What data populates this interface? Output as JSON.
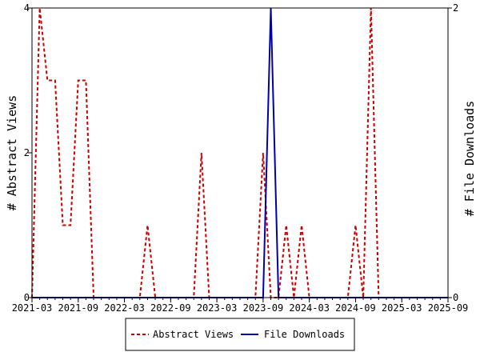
{
  "chart_data": {
    "type": "line",
    "title": "",
    "xlabel": "",
    "ylabel": "# Abstract Views",
    "y2label": "# File Downloads",
    "x_range": [
      "2021-03",
      "2025-09"
    ],
    "x_ticks": [
      "2021-03",
      "2021-09",
      "2022-03",
      "2022-09",
      "2023-03",
      "2023-09",
      "2024-03",
      "2024-09",
      "2025-03",
      "2025-09"
    ],
    "ylim": [
      0,
      4
    ],
    "y_ticks": [
      "0",
      "2",
      "4"
    ],
    "y2lim": [
      0,
      2
    ],
    "y2_ticks": [
      "0",
      "2"
    ],
    "legend_position": "bottom",
    "series": [
      {
        "name": "Abstract Views",
        "axis": "left",
        "color": "#cc0000",
        "dash": "dashed",
        "x": [
          "2021-03",
          "2021-04",
          "2021-05",
          "2021-06",
          "2021-07",
          "2021-08",
          "2021-09",
          "2021-10",
          "2021-11",
          "2021-12",
          "2022-01",
          "2022-02",
          "2022-03",
          "2022-04",
          "2022-05",
          "2022-06",
          "2022-07",
          "2022-08",
          "2022-09",
          "2022-10",
          "2022-11",
          "2022-12",
          "2023-01",
          "2023-02",
          "2023-03",
          "2023-04",
          "2023-05",
          "2023-06",
          "2023-07",
          "2023-08",
          "2023-09",
          "2023-10",
          "2023-11",
          "2023-12",
          "2024-01",
          "2024-02",
          "2024-03",
          "2024-04",
          "2024-05",
          "2024-06",
          "2024-07",
          "2024-08",
          "2024-09",
          "2024-10",
          "2024-11",
          "2024-12",
          "2025-01",
          "2025-02",
          "2025-03",
          "2025-04",
          "2025-05",
          "2025-06",
          "2025-07",
          "2025-08",
          "2025-09"
        ],
        "values": [
          0,
          4,
          3,
          3,
          1,
          1,
          3,
          3,
          0,
          0,
          0,
          0,
          0,
          0,
          0,
          1,
          0,
          0,
          0,
          0,
          0,
          0,
          2,
          0,
          0,
          0,
          0,
          0,
          0,
          0,
          2,
          0,
          0,
          1,
          0,
          1,
          0,
          0,
          0,
          0,
          0,
          0,
          1,
          0,
          4,
          0,
          0,
          0,
          0,
          0,
          0,
          0,
          0,
          0,
          0
        ]
      },
      {
        "name": "File Downloads",
        "axis": "right",
        "color": "#0000aa",
        "dash": "solid",
        "x": [
          "2021-03",
          "2023-08",
          "2023-09",
          "2023-10",
          "2023-11",
          "2025-09"
        ],
        "values": [
          0,
          0,
          0,
          2,
          0,
          0
        ]
      }
    ]
  }
}
